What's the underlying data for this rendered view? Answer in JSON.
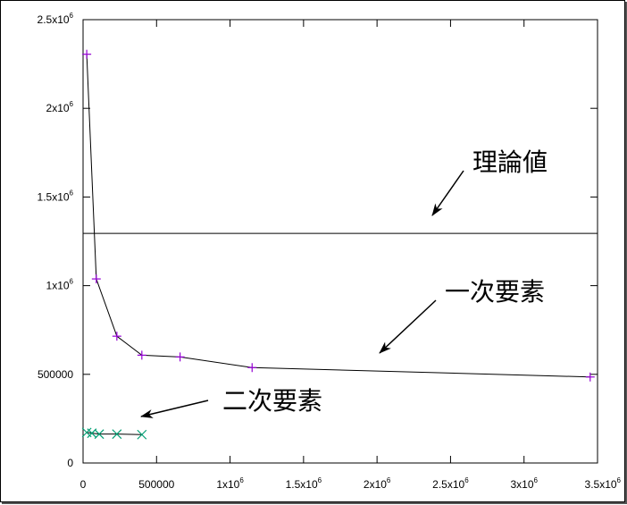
{
  "chart_data": {
    "type": "line",
    "title": "",
    "xlabel": "",
    "ylabel": "",
    "xlim": [
      0,
      3500000
    ],
    "ylim": [
      0,
      2500000
    ],
    "grid": false,
    "x_ticks": [
      {
        "value": 0,
        "label": "0",
        "exp": ""
      },
      {
        "value": 500000,
        "label": "500000",
        "exp": ""
      },
      {
        "value": 1000000,
        "label": "1x10",
        "exp": "6"
      },
      {
        "value": 1500000,
        "label": "1.5x10",
        "exp": "6"
      },
      {
        "value": 2000000,
        "label": "2x10",
        "exp": "6"
      },
      {
        "value": 2500000,
        "label": "2.5x10",
        "exp": "6"
      },
      {
        "value": 3000000,
        "label": "3x10",
        "exp": "6"
      },
      {
        "value": 3500000,
        "label": "3.5x10",
        "exp": "6"
      }
    ],
    "y_ticks": [
      {
        "value": 0,
        "label": "0",
        "exp": ""
      },
      {
        "value": 500000,
        "label": "500000",
        "exp": ""
      },
      {
        "value": 1000000,
        "label": "1x10",
        "exp": "6"
      },
      {
        "value": 1500000,
        "label": "1.5x10",
        "exp": "6"
      },
      {
        "value": 2000000,
        "label": "2x10",
        "exp": "6"
      },
      {
        "value": 2500000,
        "label": "2.5x10",
        "exp": "6"
      }
    ],
    "series": [
      {
        "name": "一次要素",
        "marker": "plus",
        "marker_color": "#9400d3",
        "x": [
          25000,
          90000,
          230000,
          400000,
          660000,
          1150000,
          3450000
        ],
        "y": [
          2305000,
          1038000,
          715000,
          608000,
          598000,
          538000,
          485000
        ]
      },
      {
        "name": "二次要素",
        "marker": "cross",
        "marker_color": "#009e73",
        "x": [
          25000,
          60000,
          110000,
          230000,
          400000
        ],
        "y": [
          172000,
          168000,
          163000,
          163000,
          160000
        ]
      }
    ],
    "reference_lines": [
      {
        "name": "理論値",
        "y": 1295000
      }
    ],
    "annotations": [
      {
        "text": "理論値",
        "target": "reference-line"
      },
      {
        "text": "一次要素",
        "target": "series-0"
      },
      {
        "text": "二次要素",
        "target": "series-1"
      }
    ]
  }
}
